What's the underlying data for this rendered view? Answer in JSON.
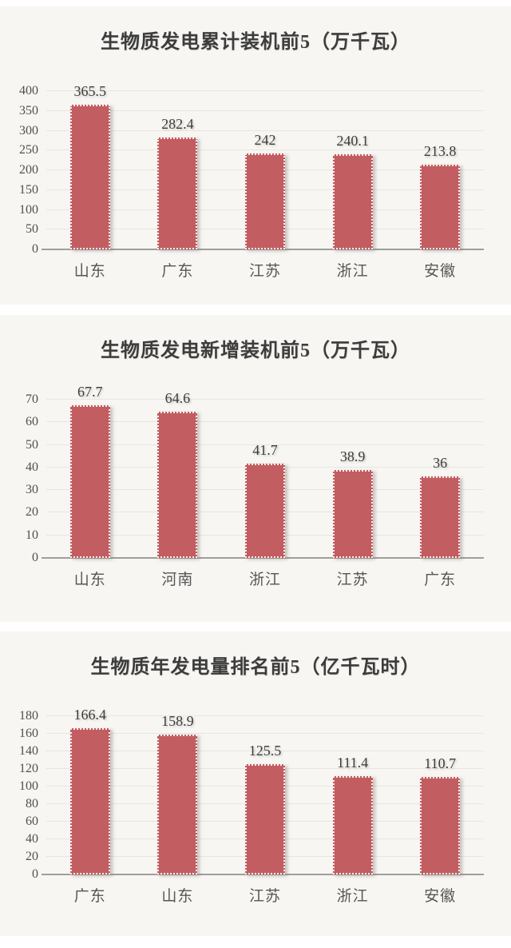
{
  "theme": {
    "bar_color": "#c25d61",
    "panel_bg": "#f7f6f3",
    "page_bg": "#ffffff",
    "title_color": "#3c3c3c",
    "axis_label_color": "#4f4f4f",
    "gridline_color": "#e9e6e1",
    "baseline_color": "#a09e9b"
  },
  "chart_data": [
    {
      "type": "bar",
      "title": "生物质发电累计装机前5（万千瓦）",
      "categories": [
        "山东",
        "广东",
        "江苏",
        "浙江",
        "安徽"
      ],
      "values": [
        365.5,
        282.4,
        242,
        240.1,
        213.8
      ],
      "value_labels": [
        "365.5",
        "282.4",
        "242",
        "240.1",
        "213.8"
      ],
      "ylim": [
        0,
        400
      ],
      "ytick_step": 50,
      "xlabel": "",
      "ylabel": "",
      "grid": "horizontal",
      "legend": "none"
    },
    {
      "type": "bar",
      "title": "生物质发电新增装机前5（万千瓦）",
      "categories": [
        "山东",
        "河南",
        "浙江",
        "江苏",
        "广东"
      ],
      "values": [
        67.7,
        64.6,
        41.7,
        38.9,
        36
      ],
      "value_labels": [
        "67.7",
        "64.6",
        "41.7",
        "38.9",
        "36"
      ],
      "ylim": [
        0,
        70
      ],
      "ytick_step": 10,
      "xlabel": "",
      "ylabel": "",
      "grid": "horizontal",
      "legend": "none"
    },
    {
      "type": "bar",
      "title": "生物质年发电量排名前5（亿千瓦时）",
      "categories": [
        "广东",
        "山东",
        "江苏",
        "浙江",
        "安徽"
      ],
      "values": [
        166.4,
        158.9,
        125.5,
        111.4,
        110.7
      ],
      "value_labels": [
        "166.4",
        "158.9",
        "125.5",
        "111.4",
        "110.7"
      ],
      "ylim": [
        0,
        180
      ],
      "ytick_step": 20,
      "xlabel": "",
      "ylabel": "",
      "grid": "horizontal",
      "legend": "none"
    }
  ]
}
